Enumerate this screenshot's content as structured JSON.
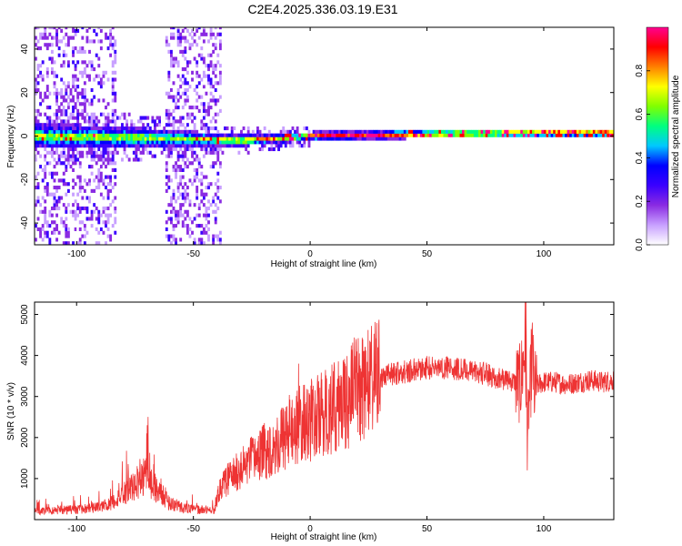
{
  "title": "C2E4.2025.336.03.19.E31",
  "chart_data": [
    {
      "type": "heatmap",
      "title": "C2E4.2025.336.03.19.E31",
      "xlabel": "Height of straight line (km)",
      "ylabel": "Frequency (Hz)",
      "xlim": [
        -118,
        130
      ],
      "ylim": [
        -50,
        50
      ],
      "xticks": [
        -100,
        -50,
        0,
        50,
        100
      ],
      "yticks": [
        -40,
        -20,
        0,
        20,
        40
      ],
      "colorbar": {
        "label": "Normalized spectral amplitude",
        "range": [
          0,
          1
        ],
        "ticks": [
          0.0,
          0.2,
          0.4,
          0.6,
          0.8
        ],
        "tick_labels": [
          "0.0",
          "0.2",
          "0.4",
          "0.6",
          "0.8"
        ],
        "colormap": [
          "#ffffff",
          "#c8a0ff",
          "#8a2be2",
          "#3a00ff",
          "#0000ff",
          "#00c8ff",
          "#00ff80",
          "#80ff00",
          "#ffff00",
          "#ff8000",
          "#ff0000",
          "#ff0090"
        ]
      },
      "ridge": {
        "description_values": "narrow band near 0 Hz, centered slightly below 0 for heights < 0 km and slightly above 0 for heights > 0 km",
        "center_freq": [
          [
            -118,
            0
          ],
          [
            -60,
            -1
          ],
          [
            -30,
            -2
          ],
          [
            0,
            0
          ],
          [
            50,
            1
          ],
          [
            100,
            1.5
          ],
          [
            130,
            1.5
          ]
        ],
        "halfwidth_hz": [
          [
            -118,
            6
          ],
          [
            -80,
            5
          ],
          [
            -40,
            3
          ],
          [
            0,
            2
          ],
          [
            130,
            2
          ]
        ],
        "noise_regions_km": [
          [
            -118,
            -84
          ],
          [
            -62,
            -39
          ]
        ]
      }
    },
    {
      "type": "line",
      "xlabel": "Height of straight line (km)",
      "ylabel": "SNR (10 * v/v)",
      "xlim": [
        -118,
        130
      ],
      "ylim": [
        0,
        5300
      ],
      "xticks": [
        -100,
        -50,
        0,
        50,
        100
      ],
      "yticks": [
        1000,
        2000,
        3000,
        4000,
        5000
      ],
      "series": [
        {
          "name": "SNR",
          "color": "#ee3333",
          "x": [
            -118,
            -110,
            -100,
            -90,
            -85,
            -80,
            -75,
            -72,
            -70,
            -68,
            -65,
            -60,
            -55,
            -50,
            -45,
            -41,
            -40,
            -38,
            -35,
            -30,
            -25,
            -20,
            -15,
            -10,
            -5,
            0,
            5,
            10,
            15,
            20,
            25,
            30,
            35,
            40,
            45,
            50,
            55,
            60,
            65,
            70,
            75,
            80,
            85,
            88,
            90,
            91,
            92,
            93,
            94,
            95,
            96,
            98,
            100,
            105,
            110,
            115,
            120,
            125,
            130
          ],
          "y": [
            200,
            230,
            250,
            300,
            400,
            650,
            800,
            1000,
            1200,
            900,
            700,
            400,
            300,
            250,
            230,
            250,
            500,
            800,
            1000,
            1200,
            1450,
            1650,
            1800,
            2100,
            2300,
            2400,
            2550,
            2700,
            2900,
            3200,
            3350,
            3450,
            3550,
            3600,
            3650,
            3700,
            3700,
            3720,
            3650,
            3600,
            3550,
            3450,
            3400,
            3350,
            3300,
            3700,
            4300,
            2200,
            3000,
            4000,
            3200,
            3300,
            3350,
            3350,
            3300,
            3350,
            3400,
            3350,
            3400
          ],
          "spikes": [
            [
              -70,
              2100
            ],
            [
              92.5,
              5300
            ],
            [
              93,
              1200
            ],
            [
              95,
              4600
            ],
            [
              96,
              2600
            ],
            [
              -5,
              3800
            ],
            [
              15,
              3800
            ],
            [
              29,
              4200
            ]
          ]
        }
      ]
    }
  ]
}
